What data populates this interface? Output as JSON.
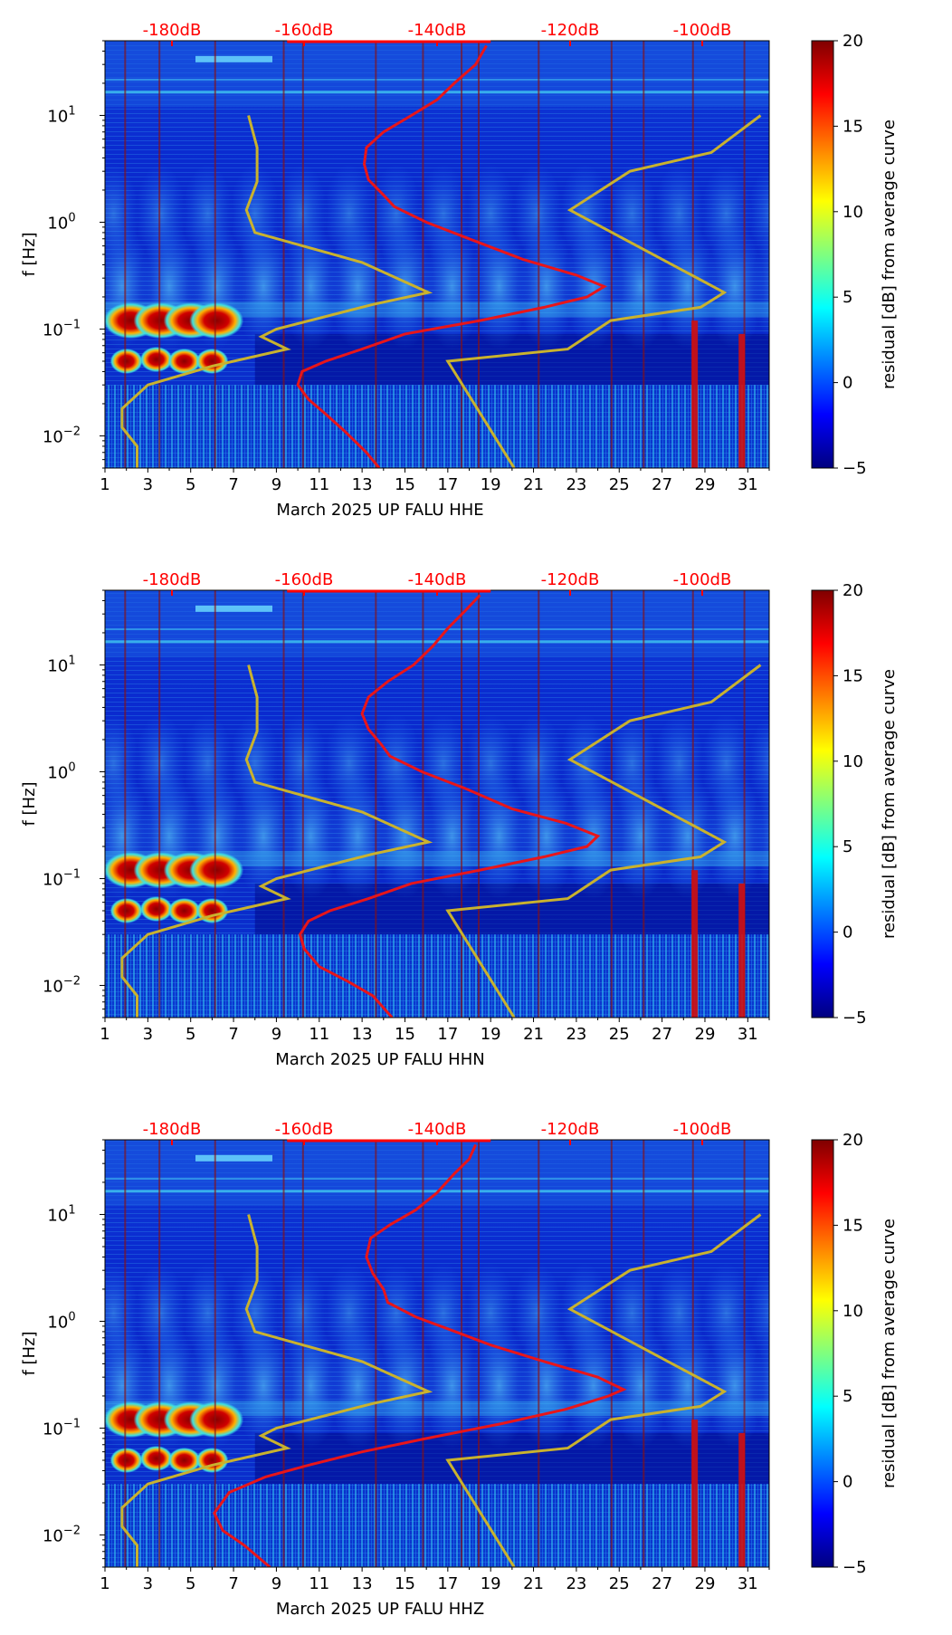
{
  "chart_data": [
    {
      "type": "heatmap",
      "channel": "HHE",
      "xlabel": "March 2025 UP FALU  HHE",
      "ylabel": "f [Hz]",
      "x_ticks": [
        "1",
        "3",
        "5",
        "7",
        "9",
        "11",
        "13",
        "15",
        "17",
        "19",
        "21",
        "23",
        "25",
        "27",
        "29",
        "31"
      ],
      "y_ticks": [
        "10^-2",
        "10^-1",
        "10^0",
        "10^1"
      ],
      "y_scale": "log",
      "xlim": [
        1,
        32
      ],
      "ylim": [
        0.005,
        50
      ],
      "top_axis_ticks": [
        "-180dB",
        "-160dB",
        "-140dB",
        "-120dB",
        "-100dB"
      ],
      "colorbar": {
        "label": "residual [dB] from average curve",
        "ticks": [
          "20",
          "15",
          "10",
          "5",
          "0",
          "−5"
        ],
        "range": [
          -5,
          20
        ]
      },
      "red_curve": [
        [
          13.8,
          0.005
        ],
        [
          13.2,
          0.007
        ],
        [
          12.2,
          0.011
        ],
        [
          11.3,
          0.016
        ],
        [
          10.5,
          0.022
        ],
        [
          10.0,
          0.03
        ],
        [
          10.2,
          0.04
        ],
        [
          11.3,
          0.05
        ],
        [
          13.0,
          0.065
        ],
        [
          15.0,
          0.09
        ],
        [
          18.5,
          0.12
        ],
        [
          21.5,
          0.16
        ],
        [
          23.5,
          0.2
        ],
        [
          24.3,
          0.25
        ],
        [
          23.0,
          0.32
        ],
        [
          20.5,
          0.45
        ],
        [
          18.0,
          0.7
        ],
        [
          16.0,
          1.0
        ],
        [
          14.5,
          1.4
        ],
        [
          14.0,
          1.8
        ],
        [
          13.3,
          2.5
        ],
        [
          13.1,
          3.5
        ],
        [
          13.2,
          5.0
        ],
        [
          14.0,
          7.0
        ],
        [
          15.3,
          10.0
        ],
        [
          16.5,
          14
        ],
        [
          17.3,
          20
        ],
        [
          18.3,
          30
        ],
        [
          18.8,
          45
        ]
      ],
      "yellow_curve_left": [
        [
          2.5,
          0.005
        ],
        [
          2.5,
          0.008
        ],
        [
          1.8,
          0.012
        ],
        [
          1.8,
          0.018
        ],
        [
          3.0,
          0.03
        ],
        [
          6.0,
          0.045
        ],
        [
          9.5,
          0.065
        ],
        [
          8.3,
          0.085
        ],
        [
          9.0,
          0.1
        ],
        [
          13.5,
          0.17
        ],
        [
          16.1,
          0.22
        ],
        [
          13.0,
          0.42
        ],
        [
          8.0,
          0.8
        ],
        [
          7.6,
          1.3
        ],
        [
          8.1,
          2.4
        ],
        [
          8.1,
          5.0
        ],
        [
          7.7,
          10.0
        ]
      ],
      "yellow_curve_right": [
        [
          20.1,
          0.005
        ],
        [
          17.0,
          0.05
        ],
        [
          22.6,
          0.065
        ],
        [
          24.6,
          0.12
        ],
        [
          28.8,
          0.16
        ],
        [
          29.9,
          0.22
        ],
        [
          22.7,
          1.3
        ],
        [
          25.5,
          3.0
        ],
        [
          29.3,
          4.5
        ],
        [
          31.6,
          10.0
        ]
      ]
    },
    {
      "type": "heatmap",
      "channel": "HHN",
      "xlabel": "March 2025 UP FALU  HHN",
      "ylabel": "f [Hz]",
      "x_ticks": [
        "1",
        "3",
        "5",
        "7",
        "9",
        "11",
        "13",
        "15",
        "17",
        "19",
        "21",
        "23",
        "25",
        "27",
        "29",
        "31"
      ],
      "y_ticks": [
        "10^-2",
        "10^-1",
        "10^0",
        "10^1"
      ],
      "y_scale": "log",
      "xlim": [
        1,
        32
      ],
      "ylim": [
        0.005,
        50
      ],
      "top_axis_ticks": [
        "-180dB",
        "-160dB",
        "-140dB",
        "-120dB",
        "-100dB"
      ],
      "colorbar": {
        "label": "residual [dB] from average curve",
        "ticks": [
          "20",
          "15",
          "10",
          "5",
          "0",
          "−5"
        ],
        "range": [
          -5,
          20
        ]
      },
      "red_curve": [
        [
          14.4,
          0.005
        ],
        [
          13.5,
          0.008
        ],
        [
          12.3,
          0.011
        ],
        [
          11.0,
          0.015
        ],
        [
          10.3,
          0.022
        ],
        [
          10.1,
          0.03
        ],
        [
          10.5,
          0.04
        ],
        [
          11.5,
          0.05
        ],
        [
          13.3,
          0.065
        ],
        [
          15.3,
          0.09
        ],
        [
          18.5,
          0.12
        ],
        [
          21.5,
          0.16
        ],
        [
          23.5,
          0.2
        ],
        [
          24.0,
          0.25
        ],
        [
          22.5,
          0.33
        ],
        [
          20.0,
          0.45
        ],
        [
          17.8,
          0.7
        ],
        [
          15.8,
          1.0
        ],
        [
          14.3,
          1.4
        ],
        [
          13.9,
          1.8
        ],
        [
          13.3,
          2.5
        ],
        [
          13.0,
          3.5
        ],
        [
          13.3,
          5.0
        ],
        [
          14.2,
          7.0
        ],
        [
          15.4,
          10.0
        ],
        [
          16.3,
          15
        ],
        [
          17.0,
          22
        ],
        [
          17.8,
          32
        ],
        [
          18.5,
          45
        ]
      ],
      "yellow_curve_left": [
        [
          2.5,
          0.005
        ],
        [
          2.5,
          0.008
        ],
        [
          1.8,
          0.012
        ],
        [
          1.8,
          0.018
        ],
        [
          3.0,
          0.03
        ],
        [
          6.0,
          0.045
        ],
        [
          9.5,
          0.065
        ],
        [
          8.3,
          0.085
        ],
        [
          9.0,
          0.1
        ],
        [
          13.5,
          0.17
        ],
        [
          16.1,
          0.22
        ],
        [
          13.0,
          0.42
        ],
        [
          8.0,
          0.8
        ],
        [
          7.6,
          1.3
        ],
        [
          8.1,
          2.4
        ],
        [
          8.1,
          5.0
        ],
        [
          7.7,
          10.0
        ]
      ],
      "yellow_curve_right": [
        [
          20.1,
          0.005
        ],
        [
          17.0,
          0.05
        ],
        [
          22.6,
          0.065
        ],
        [
          24.6,
          0.12
        ],
        [
          28.8,
          0.16
        ],
        [
          29.9,
          0.22
        ],
        [
          22.7,
          1.3
        ],
        [
          25.5,
          3.0
        ],
        [
          29.3,
          4.5
        ],
        [
          31.6,
          10.0
        ]
      ]
    },
    {
      "type": "heatmap",
      "channel": "HHZ",
      "xlabel": "March 2025 UP FALU  HHZ",
      "ylabel": "f [Hz]",
      "x_ticks": [
        "1",
        "3",
        "5",
        "7",
        "9",
        "11",
        "13",
        "15",
        "17",
        "19",
        "21",
        "23",
        "25",
        "27",
        "29",
        "31"
      ],
      "y_ticks": [
        "10^-2",
        "10^-1",
        "10^0",
        "10^1"
      ],
      "y_scale": "log",
      "xlim": [
        1,
        32
      ],
      "ylim": [
        0.005,
        50
      ],
      "top_axis_ticks": [
        "-180dB",
        "-160dB",
        "-140dB",
        "-120dB",
        "-100dB"
      ],
      "colorbar": {
        "label": "residual [dB] from average curve",
        "ticks": [
          "20",
          "15",
          "10",
          "5",
          "0",
          "−5"
        ],
        "range": [
          -5,
          20
        ]
      },
      "red_curve": [
        [
          8.7,
          0.005
        ],
        [
          7.5,
          0.008
        ],
        [
          6.5,
          0.011
        ],
        [
          6.1,
          0.016
        ],
        [
          6.8,
          0.025
        ],
        [
          8.5,
          0.035
        ],
        [
          10.5,
          0.045
        ],
        [
          13.0,
          0.06
        ],
        [
          16.0,
          0.08
        ],
        [
          19.5,
          0.11
        ],
        [
          22.5,
          0.15
        ],
        [
          24.5,
          0.2
        ],
        [
          25.2,
          0.23
        ],
        [
          24.0,
          0.3
        ],
        [
          21.5,
          0.42
        ],
        [
          19.0,
          0.6
        ],
        [
          17.0,
          0.85
        ],
        [
          15.5,
          1.1
        ],
        [
          14.2,
          1.5
        ],
        [
          14.0,
          2.0
        ],
        [
          13.5,
          2.8
        ],
        [
          13.2,
          4.0
        ],
        [
          13.4,
          6.0
        ],
        [
          14.3,
          8.0
        ],
        [
          15.5,
          11.0
        ],
        [
          16.5,
          16
        ],
        [
          17.3,
          24
        ],
        [
          18.0,
          33
        ],
        [
          18.3,
          45
        ]
      ],
      "yellow_curve_left": [
        [
          2.5,
          0.005
        ],
        [
          2.5,
          0.008
        ],
        [
          1.8,
          0.012
        ],
        [
          1.8,
          0.018
        ],
        [
          3.0,
          0.03
        ],
        [
          6.0,
          0.045
        ],
        [
          9.5,
          0.065
        ],
        [
          8.3,
          0.085
        ],
        [
          9.0,
          0.1
        ],
        [
          13.5,
          0.17
        ],
        [
          16.1,
          0.22
        ],
        [
          13.0,
          0.42
        ],
        [
          8.0,
          0.8
        ],
        [
          7.6,
          1.3
        ],
        [
          8.1,
          2.4
        ],
        [
          8.1,
          5.0
        ],
        [
          7.7,
          10.0
        ]
      ],
      "yellow_curve_right": [
        [
          20.1,
          0.005
        ],
        [
          17.0,
          0.05
        ],
        [
          22.6,
          0.065
        ],
        [
          24.6,
          0.12
        ],
        [
          28.8,
          0.16
        ],
        [
          29.9,
          0.22
        ],
        [
          22.7,
          1.3
        ],
        [
          25.5,
          3.0
        ],
        [
          29.3,
          4.5
        ],
        [
          31.6,
          10.0
        ]
      ]
    }
  ],
  "colors": {
    "red_curve": "#e8151a",
    "yellow_curve": "#c9b22e",
    "top_axis": "#ff0000",
    "background": "#00008f"
  }
}
